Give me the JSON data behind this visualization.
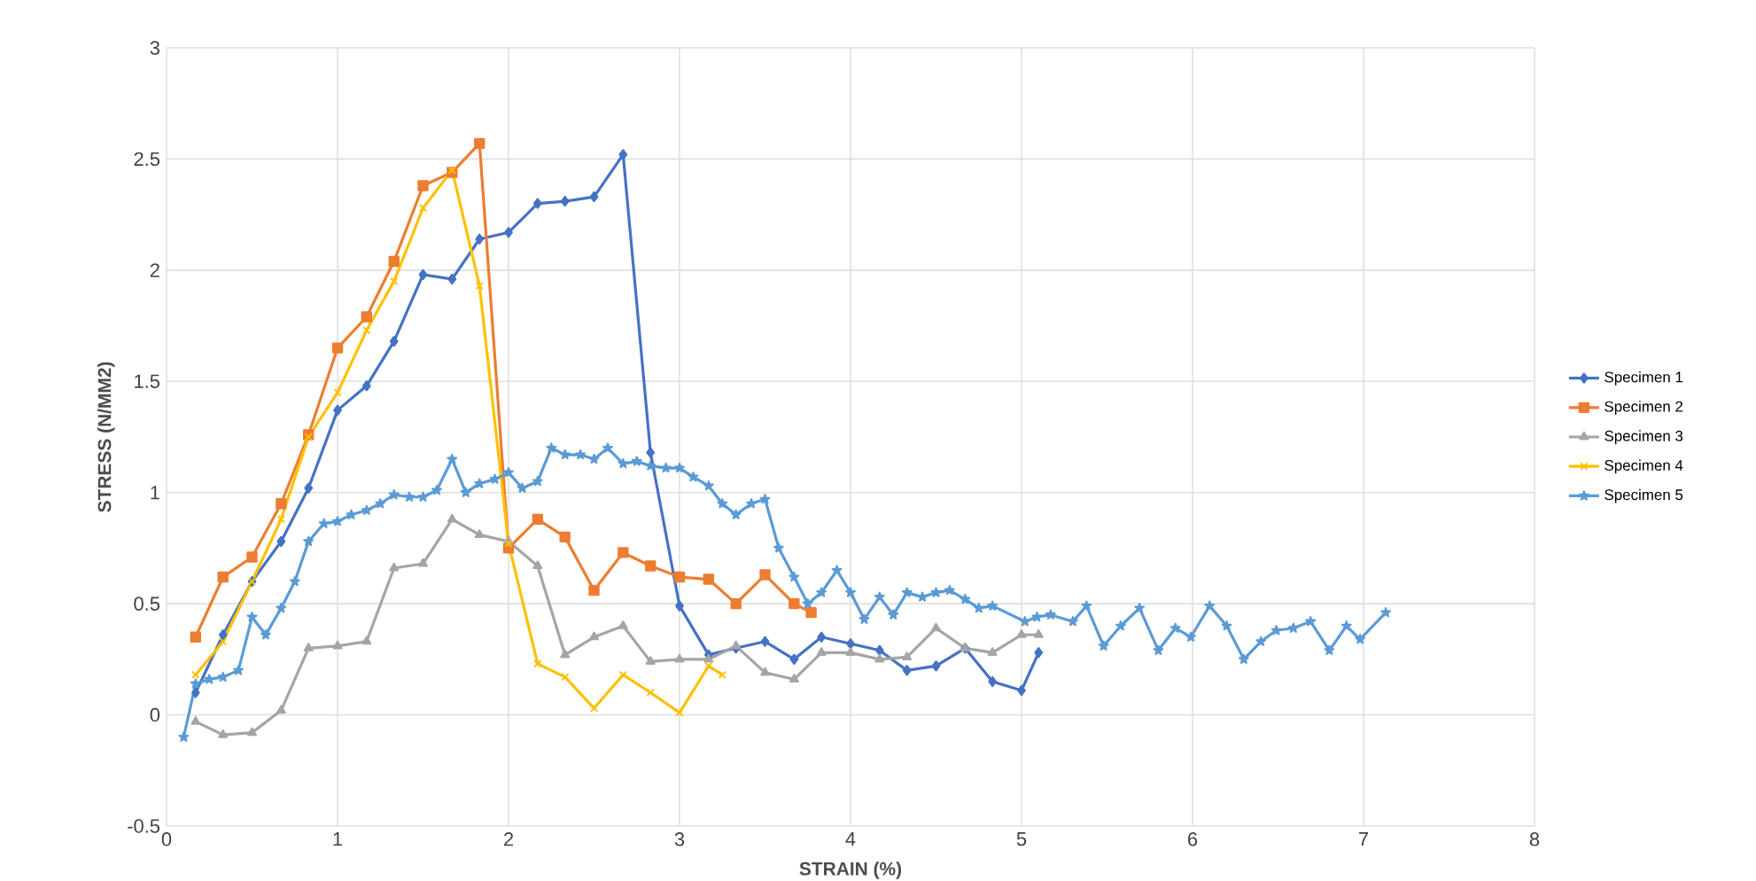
{
  "chart_data": {
    "type": "line",
    "xlabel": "STRAIN (%)",
    "ylabel": "STRESS (N/MM2)",
    "xlim": [
      0,
      8
    ],
    "ylim": [
      -0.5,
      3
    ],
    "xticks": [
      0,
      1,
      2,
      3,
      4,
      5,
      6,
      7,
      8
    ],
    "yticks": [
      -0.5,
      0,
      0.5,
      1,
      1.5,
      2,
      2.5,
      3
    ],
    "grid": true,
    "legend": "right",
    "line_style": "solid",
    "series": [
      {
        "name": "Specimen 1",
        "color": "#4472c4",
        "marker": "diamond",
        "x": [
          0.17,
          0.33,
          0.5,
          0.67,
          0.83,
          1.0,
          1.17,
          1.33,
          1.5,
          1.67,
          1.83,
          2.0,
          2.17,
          2.33,
          2.5,
          2.67,
          2.83,
          3.0,
          3.17,
          3.33,
          3.5,
          3.67,
          3.83,
          4.0,
          4.17,
          4.33,
          4.5,
          4.67,
          4.83,
          5.0,
          5.1
        ],
        "values": [
          0.1,
          0.36,
          0.6,
          0.78,
          1.02,
          1.37,
          1.48,
          1.68,
          1.98,
          1.96,
          2.14,
          2.17,
          2.3,
          2.31,
          2.33,
          2.52,
          1.18,
          0.49,
          0.27,
          0.3,
          0.33,
          0.25,
          0.35,
          0.32,
          0.29,
          0.2,
          0.22,
          0.3,
          0.15,
          0.11,
          0.28
        ]
      },
      {
        "name": "Specimen 2",
        "color": "#ed7d31",
        "marker": "square",
        "x": [
          0.17,
          0.33,
          0.5,
          0.67,
          0.83,
          1.0,
          1.17,
          1.33,
          1.5,
          1.67,
          1.83,
          2.0,
          2.17,
          2.33,
          2.5,
          2.67,
          2.83,
          3.0,
          3.17,
          3.33,
          3.5,
          3.67,
          3.77
        ],
        "values": [
          0.35,
          0.62,
          0.71,
          0.95,
          1.26,
          1.65,
          1.79,
          2.04,
          2.38,
          2.44,
          2.57,
          0.75,
          0.88,
          0.8,
          0.56,
          0.73,
          0.67,
          0.62,
          0.61,
          0.5,
          0.63,
          0.5,
          0.46
        ]
      },
      {
        "name": "Specimen 3",
        "color": "#a5a5a5",
        "marker": "triangle",
        "x": [
          0.17,
          0.33,
          0.5,
          0.67,
          0.83,
          1.0,
          1.17,
          1.33,
          1.5,
          1.67,
          1.83,
          2.0,
          2.17,
          2.33,
          2.5,
          2.67,
          2.83,
          3.0,
          3.17,
          3.33,
          3.5,
          3.67,
          3.83,
          4.0,
          4.17,
          4.33,
          4.5,
          4.67,
          4.83,
          5.0,
          5.1
        ],
        "values": [
          -0.03,
          -0.09,
          -0.08,
          0.02,
          0.3,
          0.31,
          0.33,
          0.66,
          0.68,
          0.88,
          0.81,
          0.78,
          0.67,
          0.27,
          0.35,
          0.4,
          0.24,
          0.25,
          0.25,
          0.31,
          0.19,
          0.16,
          0.28,
          0.28,
          0.25,
          0.26,
          0.39,
          0.3,
          0.28,
          0.36,
          0.36
        ]
      },
      {
        "name": "Specimen 4",
        "color": "#ffc000",
        "marker": "cross",
        "x": [
          0.17,
          0.33,
          0.5,
          0.67,
          0.83,
          1.0,
          1.17,
          1.33,
          1.5,
          1.67,
          1.83,
          2.0,
          2.17,
          2.33,
          2.5,
          2.67,
          2.83,
          3.0,
          3.17,
          3.25
        ],
        "values": [
          0.18,
          0.33,
          0.6,
          0.88,
          1.25,
          1.45,
          1.73,
          1.95,
          2.28,
          2.45,
          1.93,
          0.77,
          0.23,
          0.17,
          0.03,
          0.18,
          0.1,
          0.01,
          0.22,
          0.18
        ]
      },
      {
        "name": "Specimen 5",
        "color": "#5b9bd5",
        "marker": "star",
        "x": [
          0.1,
          0.17,
          0.25,
          0.33,
          0.42,
          0.5,
          0.58,
          0.67,
          0.75,
          0.83,
          0.92,
          1.0,
          1.08,
          1.17,
          1.25,
          1.33,
          1.42,
          1.5,
          1.58,
          1.67,
          1.75,
          1.83,
          1.92,
          2.0,
          2.08,
          2.17,
          2.25,
          2.33,
          2.42,
          2.5,
          2.58,
          2.67,
          2.75,
          2.83,
          2.92,
          3.0,
          3.08,
          3.17,
          3.25,
          3.33,
          3.42,
          3.5,
          3.58,
          3.67,
          3.75,
          3.83,
          3.92,
          4.0,
          4.08,
          4.17,
          4.25,
          4.33,
          4.42,
          4.5,
          4.58,
          4.67,
          4.75,
          4.83,
          5.02,
          5.09,
          5.17,
          5.3,
          5.38,
          5.48,
          5.58,
          5.69,
          5.8,
          5.9,
          5.99,
          6.1,
          6.2,
          6.3,
          6.4,
          6.49,
          6.59,
          6.69,
          6.8,
          6.9,
          6.98,
          7.13
        ],
        "values": [
          -0.1,
          0.14,
          0.16,
          0.17,
          0.2,
          0.44,
          0.36,
          0.48,
          0.6,
          0.78,
          0.86,
          0.87,
          0.9,
          0.92,
          0.95,
          0.99,
          0.98,
          0.98,
          1.01,
          1.15,
          1.0,
          1.04,
          1.06,
          1.09,
          1.02,
          1.05,
          1.2,
          1.17,
          1.17,
          1.15,
          1.2,
          1.13,
          1.14,
          1.12,
          1.11,
          1.11,
          1.07,
          1.03,
          0.95,
          0.9,
          0.95,
          0.97,
          0.75,
          0.62,
          0.5,
          0.55,
          0.65,
          0.55,
          0.43,
          0.53,
          0.45,
          0.55,
          0.53,
          0.55,
          0.56,
          0.52,
          0.48,
          0.49,
          0.42,
          0.44,
          0.45,
          0.42,
          0.49,
          0.31,
          0.4,
          0.48,
          0.29,
          0.39,
          0.35,
          0.49,
          0.4,
          0.25,
          0.33,
          0.38,
          0.39,
          0.42,
          0.29,
          0.4,
          0.34,
          0.46
        ]
      }
    ]
  }
}
